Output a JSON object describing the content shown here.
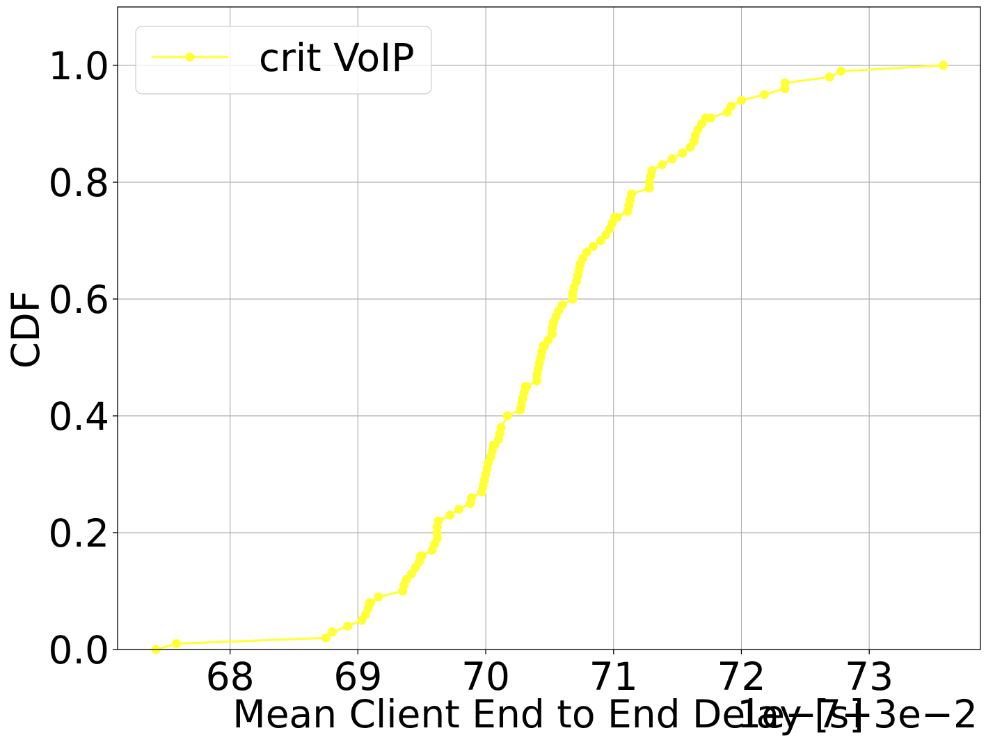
{
  "chart_data": {
    "type": "line",
    "xlabel": "Mean Client End to End Delay [s]",
    "ylabel": "CDF",
    "x_offset_label": "1e−7+3e−2",
    "xlim": [
      67.12,
      73.87
    ],
    "ylim": [
      0.0,
      1.1
    ],
    "x_ticks": [
      68,
      69,
      70,
      71,
      72,
      73
    ],
    "x_tick_labels": [
      "68",
      "69",
      "70",
      "71",
      "72",
      "73"
    ],
    "y_ticks": [
      0.0,
      0.2,
      0.4,
      0.6,
      0.8,
      1.0
    ],
    "y_tick_labels": [
      "0.0",
      "0.2",
      "0.4",
      "0.6",
      "0.8",
      "1.0"
    ],
    "grid": true,
    "legend_position": "top-left",
    "series": [
      {
        "name": "crit VoIP",
        "color": "#ffff33",
        "marker": "circle",
        "x": [
          67.42,
          67.58,
          68.75,
          68.8,
          68.92,
          69.03,
          69.06,
          69.08,
          69.09,
          69.1,
          69.16,
          69.35,
          69.36,
          69.38,
          69.42,
          69.45,
          69.48,
          69.49,
          69.5,
          69.58,
          69.6,
          69.62,
          69.62,
          69.62,
          69.63,
          69.63,
          69.72,
          69.79,
          69.88,
          69.89,
          69.97,
          69.98,
          69.99,
          70.0,
          70.01,
          70.02,
          70.04,
          70.05,
          70.06,
          70.07,
          70.1,
          70.11,
          70.12,
          70.17,
          70.27,
          70.28,
          70.29,
          70.3,
          70.31,
          70.32,
          70.4,
          70.4,
          70.41,
          70.42,
          70.43,
          70.44,
          70.45,
          70.46,
          70.49,
          70.52,
          70.52,
          70.53,
          70.55,
          70.57,
          70.6,
          70.68,
          70.68,
          70.69,
          70.71,
          70.72,
          70.73,
          70.74,
          70.76,
          70.79,
          70.84,
          70.9,
          70.94,
          70.97,
          70.99,
          71.01,
          71.03,
          71.11,
          71.12,
          71.13,
          71.14,
          71.28,
          71.28,
          71.29,
          71.3,
          71.38,
          71.46,
          71.54,
          71.6,
          71.63,
          71.64,
          71.66,
          71.69,
          71.72,
          71.76,
          71.89,
          71.92,
          72.0,
          72.18,
          72.34,
          72.34,
          72.69,
          72.78,
          73.58
        ],
        "y": [
          0.0,
          0.01,
          0.02,
          0.03,
          0.04,
          0.05,
          0.06,
          0.07,
          0.08,
          0.08,
          0.09,
          0.1,
          0.11,
          0.12,
          0.13,
          0.14,
          0.15,
          0.16,
          0.16,
          0.17,
          0.18,
          0.19,
          0.2,
          0.21,
          0.22,
          0.22,
          0.23,
          0.24,
          0.25,
          0.26,
          0.27,
          0.28,
          0.29,
          0.3,
          0.31,
          0.32,
          0.33,
          0.34,
          0.35,
          0.35,
          0.36,
          0.37,
          0.38,
          0.4,
          0.41,
          0.42,
          0.43,
          0.44,
          0.45,
          0.45,
          0.46,
          0.47,
          0.48,
          0.49,
          0.5,
          0.51,
          0.52,
          0.52,
          0.53,
          0.54,
          0.55,
          0.56,
          0.57,
          0.58,
          0.59,
          0.6,
          0.61,
          0.62,
          0.63,
          0.64,
          0.65,
          0.66,
          0.67,
          0.68,
          0.69,
          0.7,
          0.71,
          0.72,
          0.73,
          0.74,
          0.74,
          0.75,
          0.76,
          0.77,
          0.78,
          0.79,
          0.8,
          0.81,
          0.82,
          0.83,
          0.84,
          0.85,
          0.86,
          0.87,
          0.88,
          0.89,
          0.9,
          0.91,
          0.91,
          0.92,
          0.93,
          0.94,
          0.95,
          0.96,
          0.97,
          0.98,
          0.99,
          1.0
        ]
      }
    ]
  }
}
